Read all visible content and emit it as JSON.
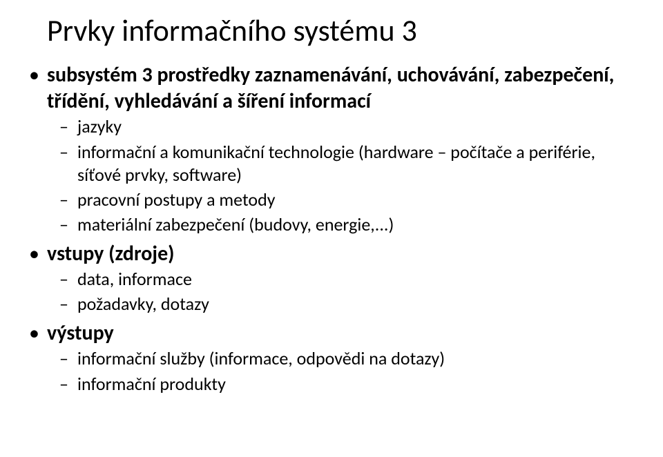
{
  "title": "Prvky informačního systému 3",
  "bullets": [
    {
      "label": "subsystém 3 prostředky zaznamenávání, uchovávání, zabezpečení, třídění, vyhledávání a šíření informací",
      "children": [
        {
          "label": "jazyky"
        },
        {
          "label": "informační a komunikační technologie (hardware – počítače a periférie, síťové prvky, software)"
        },
        {
          "label": "pracovní postupy a metody"
        },
        {
          "label": "materiální zabezpečení (budovy, energie,...)"
        }
      ]
    },
    {
      "label": "vstupy (zdroje)",
      "children": [
        {
          "label": "data, informace"
        },
        {
          "label": "požadavky, dotazy"
        }
      ]
    },
    {
      "label": "výstupy",
      "children": [
        {
          "label": "informační služby (informace, odpovědi na dotazy)"
        },
        {
          "label": "informační produkty"
        }
      ]
    }
  ]
}
